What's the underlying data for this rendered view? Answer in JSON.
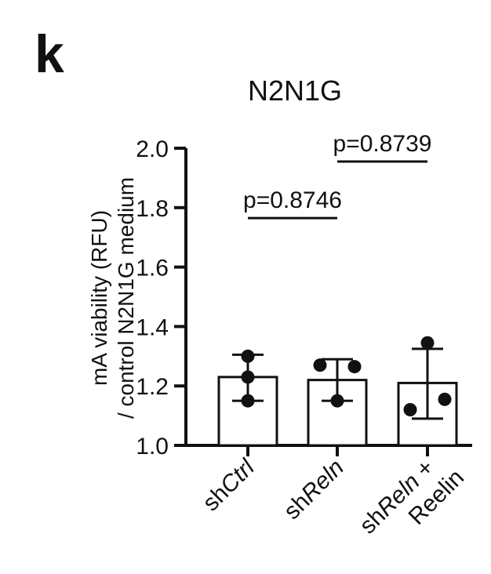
{
  "panel_letter": "k",
  "chart_data": {
    "type": "bar",
    "title": "N2N1G",
    "ylabel_line1": "mA viability (RFU)",
    "ylabel_line2": "/ control N2N1G medium",
    "ylim": [
      1.0,
      2.0
    ],
    "yticks": [
      "1.0",
      "1.2",
      "1.4",
      "1.6",
      "1.8",
      "2.0"
    ],
    "categories": [
      {
        "prefix": "sh",
        "italic": "Ctrl",
        "suffix": "",
        "line2": ""
      },
      {
        "prefix": "sh",
        "italic": "Reln",
        "suffix": "",
        "line2": ""
      },
      {
        "prefix": "sh",
        "italic": "Reln",
        "suffix": " +",
        "line2": "Reelin"
      }
    ],
    "means": [
      1.23,
      1.22,
      1.21
    ],
    "errors": [
      [
        1.15,
        1.305
      ],
      [
        1.15,
        1.29
      ],
      [
        1.09,
        1.325
      ]
    ],
    "points": [
      [
        1.3,
        1.23,
        1.15
      ],
      [
        1.27,
        1.265,
        1.15
      ],
      [
        1.345,
        1.155,
        1.12
      ]
    ],
    "comparisons": [
      {
        "label": "p=0.8746",
        "from": 0,
        "to": 1
      },
      {
        "label": "p=0.8739",
        "from": 1,
        "to": 2
      }
    ],
    "grid": false,
    "legend": "none",
    "bar_fill": "#ffffff",
    "ink": "#111111"
  }
}
